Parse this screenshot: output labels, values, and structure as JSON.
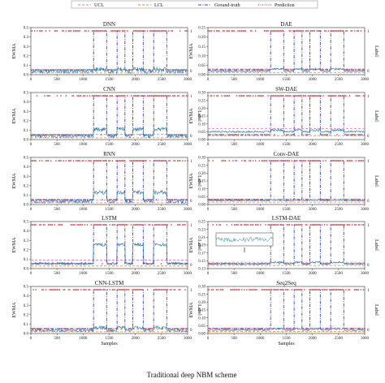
{
  "figure_caption": "Traditional deep NBM scheme",
  "legend": [
    {
      "label": "UCL",
      "color": "#e377c2",
      "style": "dash"
    },
    {
      "label": "LCL",
      "color": "#ff7f0e",
      "style": "dash"
    },
    {
      "label": "Ground-truth",
      "color": "#3b3bd6",
      "style": "dashdot"
    },
    {
      "label": "Prediction",
      "color": "#d62728",
      "style": "dot"
    }
  ],
  "colors": {
    "ewma": "#1f77b4",
    "gt": "#3b3bd6",
    "pred": "#d62728",
    "ucl": "#e377c2",
    "lcl": "#ff7f0e"
  },
  "chart_data": [
    {
      "type": "line",
      "title": "DNN",
      "ylabel": "EWMA",
      "xlabel": "",
      "ylim": [
        0,
        0.55
      ],
      "yticks": [
        "0.0",
        "0.1",
        "0.2",
        "0.3",
        "0.4",
        "0.5"
      ],
      "xticks": [
        "0",
        "500",
        "1000",
        "1500",
        "2000",
        "2500",
        "3000"
      ],
      "right_label": "",
      "right_ticks": [
        "1",
        "0"
      ],
      "ucl": 0.06,
      "lcl": 0.02,
      "base": 0.04,
      "noise": 0.025,
      "fault_level": 0.06,
      "inset": false
    },
    {
      "type": "line",
      "title": "DAE",
      "ylabel": "EWMA",
      "xlabel": "",
      "ylim": [
        0,
        0.25
      ],
      "yticks": [
        "0.00",
        "0.05",
        "0.10",
        "0.15",
        "0.20",
        "0.25"
      ],
      "xticks": [
        "0",
        "500",
        "1000",
        "1500",
        "2000",
        "2500",
        "3000"
      ],
      "right_label": "Label",
      "right_ticks": [
        "1",
        "0"
      ],
      "ucl": 0.03,
      "lcl": 0.012,
      "base": 0.018,
      "noise": 0.004,
      "fault_level": 0.03,
      "inset": false
    },
    {
      "type": "line",
      "title": "CNN",
      "ylabel": "EWMA",
      "xlabel": "",
      "ylim": [
        0,
        0.55
      ],
      "yticks": [
        "0.0",
        "0.1",
        "0.2",
        "0.3",
        "0.4",
        "0.5"
      ],
      "xticks": [
        "0",
        "500",
        "1000",
        "1500",
        "2000",
        "2500",
        "3000"
      ],
      "right_label": "Label",
      "right_ticks": [
        "1",
        "0"
      ],
      "ucl": 0.06,
      "lcl": 0.02,
      "base": 0.04,
      "noise": 0.02,
      "fault_level": 0.12,
      "inset": false
    },
    {
      "type": "line",
      "title": "SW-DAE",
      "ylabel": "EWMA",
      "xlabel": "",
      "ylim": [
        0,
        0.3
      ],
      "yticks": [
        "0.00",
        "0.05",
        "0.10",
        "0.15",
        "0.20",
        "0.25",
        "0.30"
      ],
      "xticks": [
        "0",
        "500",
        "1000",
        "1500",
        "2000",
        "2500",
        "3000"
      ],
      "right_label": "Label",
      "right_ticks": [
        "1",
        "0"
      ],
      "ucl": 0.07,
      "lcl": 0.025,
      "base": 0.05,
      "noise": 0.006,
      "fault_level": 0.06,
      "inset": false
    },
    {
      "type": "line",
      "title": "RNN",
      "ylabel": "EWMA",
      "xlabel": "",
      "ylim": [
        0,
        0.55
      ],
      "yticks": [
        "0.0",
        "0.1",
        "0.2",
        "0.3",
        "0.4",
        "0.5"
      ],
      "xticks": [
        "0",
        "500",
        "1000",
        "1500",
        "2000",
        "2500",
        "3000"
      ],
      "right_label": "Label",
      "right_ticks": [
        "1",
        "0"
      ],
      "ucl": 0.05,
      "lcl": 0.02,
      "base": 0.035,
      "noise": 0.02,
      "fault_level": 0.14,
      "inset": false
    },
    {
      "type": "line",
      "title": "Conv-DAE",
      "ylabel": "EWMA",
      "xlabel": "",
      "ylim": [
        0,
        0.3
      ],
      "yticks": [
        "0.00",
        "0.05",
        "0.10",
        "0.15",
        "0.20",
        "0.25",
        "0.30"
      ],
      "xticks": [
        "0",
        "500",
        "1000",
        "1500",
        "2000",
        "2500",
        "3000"
      ],
      "right_label": "Label",
      "right_ticks": [
        "1",
        "0"
      ],
      "ucl": 0.035,
      "lcl": 0.015,
      "base": 0.025,
      "noise": 0.004,
      "fault_level": 0.028,
      "inset": false
    },
    {
      "type": "line",
      "title": "LSTM",
      "ylabel": "EWMA",
      "xlabel": "",
      "ylim": [
        0,
        0.55
      ],
      "yticks": [
        "0.0",
        "0.1",
        "0.2",
        "0.3",
        "0.4",
        "0.5"
      ],
      "xticks": [
        "0",
        "500",
        "1000",
        "1500",
        "2000",
        "2500",
        "3000"
      ],
      "right_label": "Label",
      "right_ticks": [
        "1",
        "0"
      ],
      "ucl": 0.1,
      "lcl": 0.03,
      "base": 0.06,
      "noise": 0.015,
      "fault_level": 0.28,
      "inset": false
    },
    {
      "type": "line",
      "title": "LSTM-DAE",
      "ylabel": "EWMA",
      "xlabel": "",
      "ylim": [
        0.13,
        0.25
      ],
      "yticks": [
        "0.13",
        "0.15",
        "0.17",
        "0.19",
        "0.21",
        "0.23",
        "0.25"
      ],
      "xticks": [
        "0",
        "500",
        "1000",
        "1500",
        "2000",
        "2500",
        "3000"
      ],
      "right_label": "Label",
      "right_ticks": [
        "1",
        "0"
      ],
      "ucl": 0.146,
      "lcl": 0.138,
      "base": 0.142,
      "noise": 0.002,
      "fault_level": 0.146,
      "inset": true
    },
    {
      "type": "line",
      "title": "CNN-LSTM",
      "ylabel": "EWMA",
      "xlabel": "Samples",
      "ylim": [
        0,
        0.55
      ],
      "yticks": [
        "0.0",
        "0.1",
        "0.2",
        "0.3",
        "0.4",
        "0.5"
      ],
      "xticks": [
        "0",
        "500",
        "1000",
        "1500",
        "2000",
        "2500",
        "3000"
      ],
      "right_label": "Label",
      "right_ticks": [
        "1",
        "0"
      ],
      "ucl": 0.05,
      "lcl": 0.02,
      "base": 0.035,
      "noise": 0.015,
      "fault_level": 0.07,
      "inset": false
    },
    {
      "type": "line",
      "title": "Seq2Seq",
      "ylabel": "EWMA",
      "xlabel": "Samples",
      "ylim": [
        0,
        0.3
      ],
      "yticks": [
        "0.00",
        "0.05",
        "0.10",
        "0.15",
        "0.20",
        "0.25",
        "0.30"
      ],
      "xticks": [
        "0",
        "500",
        "1000",
        "1500",
        "2000",
        "2500",
        "3000"
      ],
      "right_label": "Label",
      "right_ticks": [
        "1",
        "0"
      ],
      "ucl": 0.035,
      "lcl": 0.012,
      "base": 0.022,
      "noise": 0.005,
      "fault_level": 0.03,
      "inset": false
    }
  ],
  "fault_intervals": [
    [
      1200,
      1450
    ],
    [
      1650,
      1800
    ],
    [
      1950,
      2150
    ],
    [
      2350,
      2600
    ]
  ],
  "x_range": [
    0,
    3000
  ]
}
